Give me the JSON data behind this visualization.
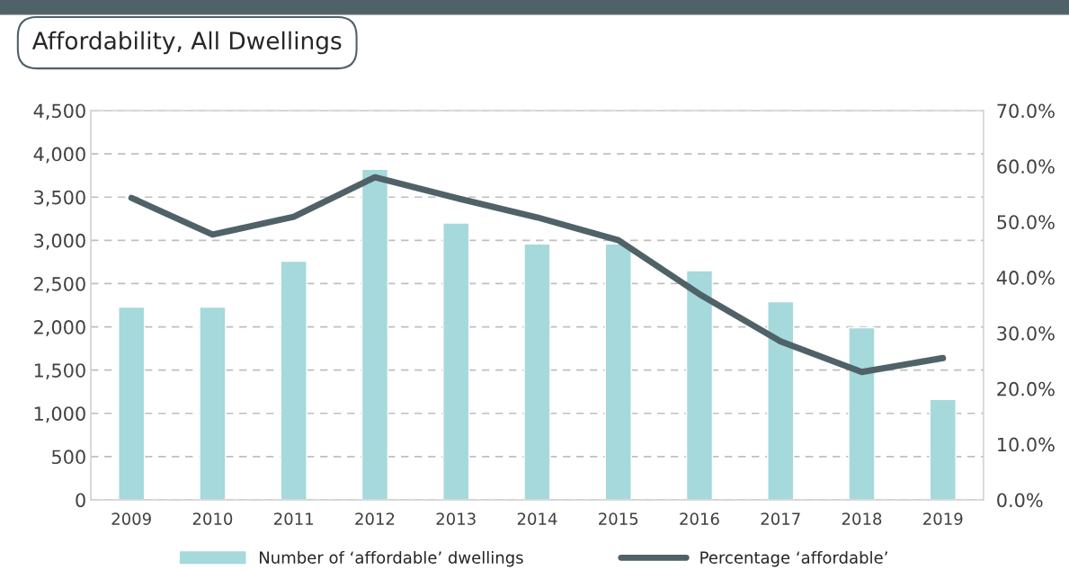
{
  "chart_data": {
    "type": "bar",
    "title": "Affordability, All Dwellings",
    "categories": [
      "2009",
      "2010",
      "2011",
      "2012",
      "2013",
      "2014",
      "2015",
      "2016",
      "2017",
      "2018",
      "2019"
    ],
    "series": [
      {
        "name": "Number of ‘affordable’ dwellings",
        "color": "#a5d9db",
        "values": [
          2230,
          2230,
          2760,
          3820,
          3200,
          2960,
          2960,
          2650,
          2290,
          1990,
          1160
        ]
      },
      {
        "name": "Percentage ‘affordable’",
        "type": "line",
        "axis": "y2",
        "color": "#4f6268",
        "values": [
          54.3,
          47.7,
          50.9,
          58.0,
          54.3,
          50.8,
          46.7,
          37.0,
          28.5,
          23.0,
          25.5
        ]
      }
    ],
    "ylim": [
      0,
      4500
    ],
    "yticks": [
      {
        "value": 0,
        "label": "0"
      },
      {
        "value": 500,
        "label": "500"
      },
      {
        "value": 1000,
        "label": "1,000"
      },
      {
        "value": 1500,
        "label": "1,500"
      },
      {
        "value": 2000,
        "label": "2,000"
      },
      {
        "value": 2500,
        "label": "2,500"
      },
      {
        "value": 3000,
        "label": "3,000"
      },
      {
        "value": 3500,
        "label": "3,500"
      },
      {
        "value": 4000,
        "label": "4,000"
      },
      {
        "value": 4500,
        "label": "4,500"
      }
    ],
    "y2lim": [
      0,
      70
    ],
    "y2ticks": [
      {
        "value": 0,
        "label": "0.0%"
      },
      {
        "value": 10,
        "label": "10.0%"
      },
      {
        "value": 20,
        "label": "20.0%"
      },
      {
        "value": 30,
        "label": "30.0%"
      },
      {
        "value": 40,
        "label": "40.0%"
      },
      {
        "value": 50,
        "label": "50.0%"
      },
      {
        "value": 60,
        "label": "60.0%"
      },
      {
        "value": 70,
        "label": "70.0%"
      }
    ],
    "grid": "y",
    "legend": "bottom",
    "marker": "none",
    "line_style": "solid"
  }
}
